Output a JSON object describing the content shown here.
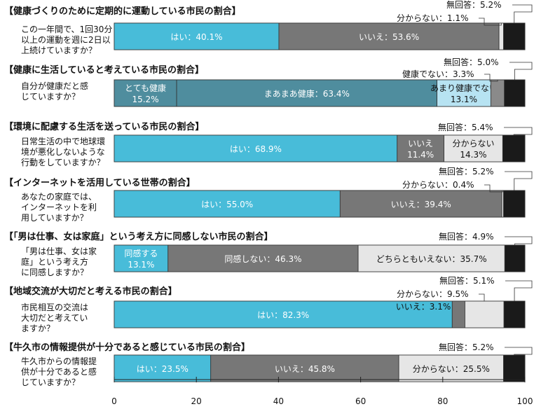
{
  "chart_data": {
    "type": "bar",
    "orientation": "horizontal",
    "stacked": true,
    "xlim": [
      0,
      100
    ],
    "xticks": [
      "0",
      "20",
      "40",
      "60",
      "80",
      "100"
    ],
    "grid": false,
    "colors": {
      "cyan": "#48bcd9",
      "gray": "#777777",
      "teal": "#4f8d9e",
      "lightgray": "#e6e6e6",
      "lightblue": "#b7e3f2",
      "midgray": "#8a8a8a",
      "dark": "#1a1a1a"
    },
    "sections": [
      {
        "title": "【健康づくりのために定期的に運動している市民の割合】",
        "question": [
          "この一年間で、1回30分",
          "以上の運動を週に2日以",
          "上続けていますか？"
        ],
        "segments": [
          {
            "name": "はい",
            "value": 40.1,
            "color": "cyan",
            "label": [
              "はい：40.1%"
            ]
          },
          {
            "name": "いいえ",
            "value": 53.6,
            "color": "gray",
            "label": [
              "いいえ：53.6%"
            ]
          },
          {
            "name": "分からない",
            "value": 1.1,
            "color": "lightgray",
            "label": [],
            "callout": "分からない：1.1%"
          },
          {
            "name": "無回答",
            "value": 5.2,
            "color": "dark",
            "label": [],
            "callout": "無回答：5.2%"
          }
        ]
      },
      {
        "title": "【健康に生活していると考えている市民の割合】",
        "question": [
          "自分が健康だと感",
          "じていますか？"
        ],
        "segments": [
          {
            "name": "とても健康",
            "value": 15.2,
            "color": "teal",
            "label": [
              "とても健康",
              "15.2%"
            ]
          },
          {
            "name": "まあまあ健康",
            "value": 63.4,
            "color": "teal",
            "label": [
              "まあまあ健康：63.4%"
            ]
          },
          {
            "name": "あまり健康でない",
            "value": 13.1,
            "color": "lightblue",
            "label": [
              "あまり健康でない",
              "13.1%"
            ]
          },
          {
            "name": "健康でない",
            "value": 3.3,
            "color": "midgray",
            "label": [],
            "callout": "健康でない：3.3%"
          },
          {
            "name": "無回答",
            "value": 5.0,
            "color": "dark",
            "label": [],
            "callout": "無回答：5.0%"
          }
        ]
      },
      {
        "title": "【環境に配慮する生活を送っている市民の割合】",
        "question": [
          "日常生活の中で地球環",
          "境が悪化しないような",
          "行動をしていますか？"
        ],
        "segments": [
          {
            "name": "はい",
            "value": 68.9,
            "color": "cyan",
            "label": [
              "はい：68.9%"
            ]
          },
          {
            "name": "いいえ",
            "value": 11.4,
            "color": "gray",
            "label": [
              "いいえ",
              "11.4%"
            ]
          },
          {
            "name": "分からない",
            "value": 14.3,
            "color": "lightgray",
            "label": [
              "分からない",
              "14.3%"
            ]
          },
          {
            "name": "無回答",
            "value": 5.4,
            "color": "dark",
            "label": [],
            "callout": "無回答：5.4%"
          }
        ]
      },
      {
        "title": "【インターネットを活用している世帯の割合】",
        "question": [
          "あなたの家庭では、",
          "インターネットを利",
          "用していますか？"
        ],
        "segments": [
          {
            "name": "はい",
            "value": 55.0,
            "color": "cyan",
            "label": [
              "はい：55.0%"
            ]
          },
          {
            "name": "いいえ",
            "value": 39.4,
            "color": "gray",
            "label": [
              "いいえ：39.4%"
            ]
          },
          {
            "name": "分からない",
            "value": 0.4,
            "color": "lightgray",
            "label": [],
            "callout": "分からない：0.4%"
          },
          {
            "name": "無回答",
            "value": 5.2,
            "color": "dark",
            "label": [],
            "callout": "無回答：5.2%"
          }
        ]
      },
      {
        "title": "【「男は仕事、女は家庭」という考え方に同感しない市民の割合】",
        "question": [
          "「男は仕事、女は家",
          "庭」という考え方",
          "に同感しますか？"
        ],
        "segments": [
          {
            "name": "同感する",
            "value": 13.1,
            "color": "cyan",
            "label": [
              "同感する",
              "13.1%"
            ]
          },
          {
            "name": "同感しない",
            "value": 46.3,
            "color": "gray",
            "label": [
              "同感しない：46.3%"
            ]
          },
          {
            "name": "どちらともいえない",
            "value": 35.7,
            "color": "lightgray",
            "label": [
              "どちらともいえない：35.7%"
            ]
          },
          {
            "name": "無回答",
            "value": 4.9,
            "color": "dark",
            "label": [],
            "callout": "無回答：4.9%"
          }
        ]
      },
      {
        "title": "【地域交流が大切だと考える市民の割合】",
        "question": [
          "市民相互の交流は",
          "大切だと考えてい",
          "ますか？"
        ],
        "segments": [
          {
            "name": "はい",
            "value": 82.3,
            "color": "cyan",
            "label": [
              "はい：82.3%"
            ]
          },
          {
            "name": "いいえ",
            "value": 3.1,
            "color": "gray",
            "label": [],
            "inner": "いいえ：3.1%"
          },
          {
            "name": "分からない",
            "value": 9.5,
            "color": "lightgray",
            "label": [],
            "callout": "分からない：9.5%"
          },
          {
            "name": "無回答",
            "value": 5.1,
            "color": "dark",
            "label": [],
            "callout": "無回答：5.1%"
          }
        ]
      },
      {
        "title": "【牛久市の情報提供が十分であると感じている市民の割合】",
        "question": [
          "牛久市からの情報提",
          "供が十分であると感",
          "じていますか？"
        ],
        "segments": [
          {
            "name": "はい",
            "value": 23.5,
            "color": "cyan",
            "label": [
              "はい：23.5%"
            ]
          },
          {
            "name": "いいえ",
            "value": 45.8,
            "color": "gray",
            "label": [
              "いいえ：45.8%"
            ]
          },
          {
            "name": "分からない",
            "value": 25.5,
            "color": "lightgray",
            "label": [
              "分からない：25.5%"
            ]
          },
          {
            "name": "無回答",
            "value": 5.2,
            "color": "dark",
            "label": [],
            "callout": "無回答：5.2%"
          }
        ]
      }
    ]
  }
}
